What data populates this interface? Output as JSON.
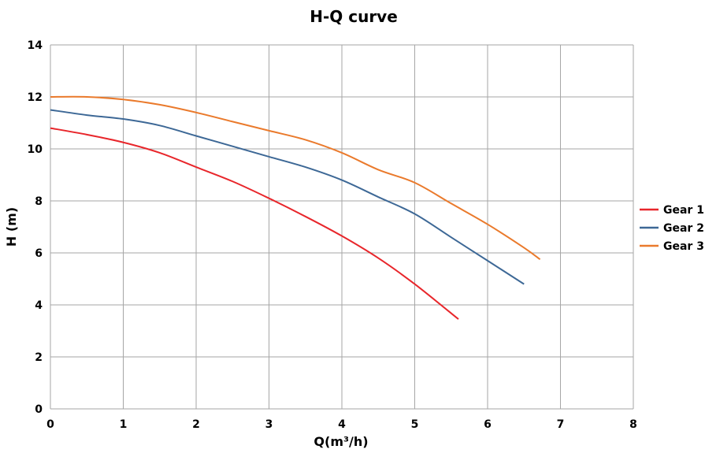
{
  "chart_data": {
    "type": "line",
    "title": "H-Q  curve",
    "xlabel": "Q(m³/h)",
    "ylabel": "H  (m)",
    "xlim": [
      0,
      8
    ],
    "ylim": [
      0,
      14
    ],
    "x_ticks": [
      0,
      1,
      2,
      3,
      4,
      5,
      6,
      7,
      8
    ],
    "y_ticks": [
      0,
      2,
      4,
      6,
      8,
      10,
      12,
      14
    ],
    "grid": true,
    "legend_position": "right",
    "series": [
      {
        "name": "Gear 1",
        "color": "#e8262b",
        "x": [
          0,
          0.5,
          1.0,
          1.5,
          2.0,
          2.5,
          3.0,
          3.5,
          4.0,
          4.5,
          5.0,
          5.6
        ],
        "y": [
          10.8,
          10.55,
          10.25,
          9.85,
          9.3,
          8.75,
          8.1,
          7.4,
          6.65,
          5.8,
          4.8,
          3.45
        ]
      },
      {
        "name": "Gear 2",
        "color": "#3d6896",
        "x": [
          0,
          0.5,
          1.0,
          1.5,
          2.0,
          2.5,
          3.0,
          3.5,
          4.0,
          4.5,
          5.0,
          5.5,
          6.0,
          6.5
        ],
        "y": [
          11.5,
          11.3,
          11.15,
          10.9,
          10.5,
          10.1,
          9.7,
          9.3,
          8.8,
          8.15,
          7.5,
          6.6,
          5.7,
          4.8
        ]
      },
      {
        "name": "Gear 3",
        "color": "#ea7a2c",
        "x": [
          0,
          0.5,
          1.0,
          1.5,
          2.0,
          2.5,
          3.0,
          3.5,
          4.0,
          4.5,
          5.0,
          5.5,
          6.0,
          6.5,
          6.72
        ],
        "y": [
          12.0,
          12.0,
          11.9,
          11.7,
          11.4,
          11.05,
          10.7,
          10.35,
          9.85,
          9.2,
          8.7,
          7.9,
          7.1,
          6.2,
          5.75
        ]
      }
    ]
  }
}
